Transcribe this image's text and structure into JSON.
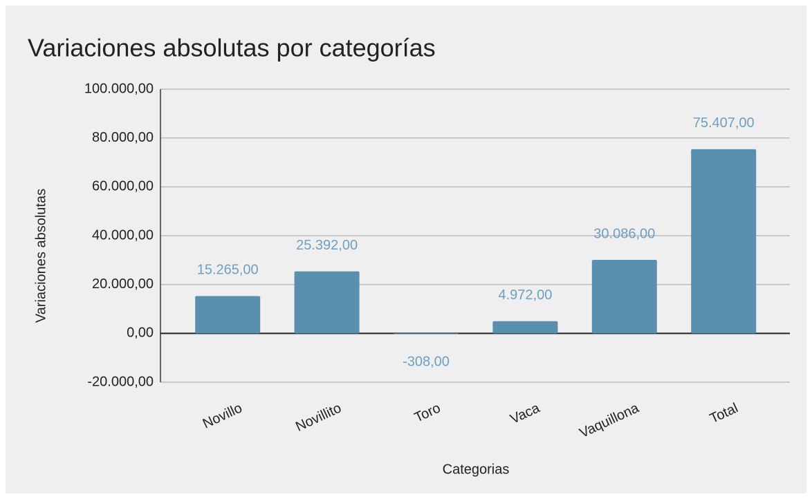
{
  "chart_data": {
    "type": "bar",
    "title": "Variaciones absolutas por categorías",
    "x_label": "Categorias",
    "y_label": "Variaciones absolutas",
    "categories": [
      "Novillo",
      "Novillito",
      "Toro",
      "Vaca",
      "Vaquillona",
      "Total"
    ],
    "values": [
      15265,
      25392,
      -308,
      4972,
      30086,
      75407
    ],
    "value_labels": [
      "15.265,00",
      "25.392,00",
      "-308,00",
      "4.972,00",
      "30.086,00",
      "75.407,00"
    ],
    "color": "#5a8fae",
    "label_color": "#6d9fc0",
    "ylim": [
      -20000,
      100000
    ],
    "yticks": [
      {
        "value": -20000,
        "label": "-20.000,00"
      },
      {
        "value": 0,
        "label": "0,00"
      },
      {
        "value": 20000,
        "label": "20.000,00"
      },
      {
        "value": 40000,
        "label": "40.000,00"
      },
      {
        "value": 60000,
        "label": "60.000,00"
      },
      {
        "value": 80000,
        "label": "80.000,00"
      },
      {
        "value": 100000,
        "label": "100.000,00"
      }
    ],
    "grid": true
  }
}
